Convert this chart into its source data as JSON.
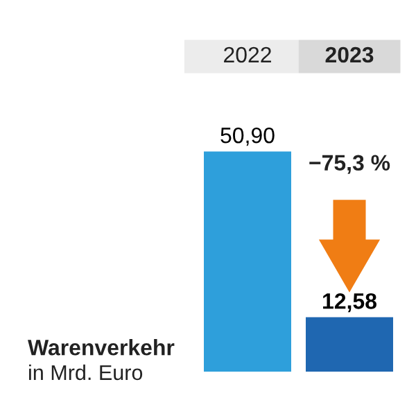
{
  "chart_data": {
    "type": "bar",
    "title": "Warenverkehr",
    "subtitle": "in Mrd. Euro",
    "categories": [
      "2022",
      "2023"
    ],
    "values": [
      50.9,
      12.58
    ],
    "colors": [
      "#2e9fdb",
      "#1f67b1"
    ],
    "value_labels": [
      "50,90",
      "12,58"
    ],
    "annotations": [
      "−75,3 %"
    ]
  }
}
